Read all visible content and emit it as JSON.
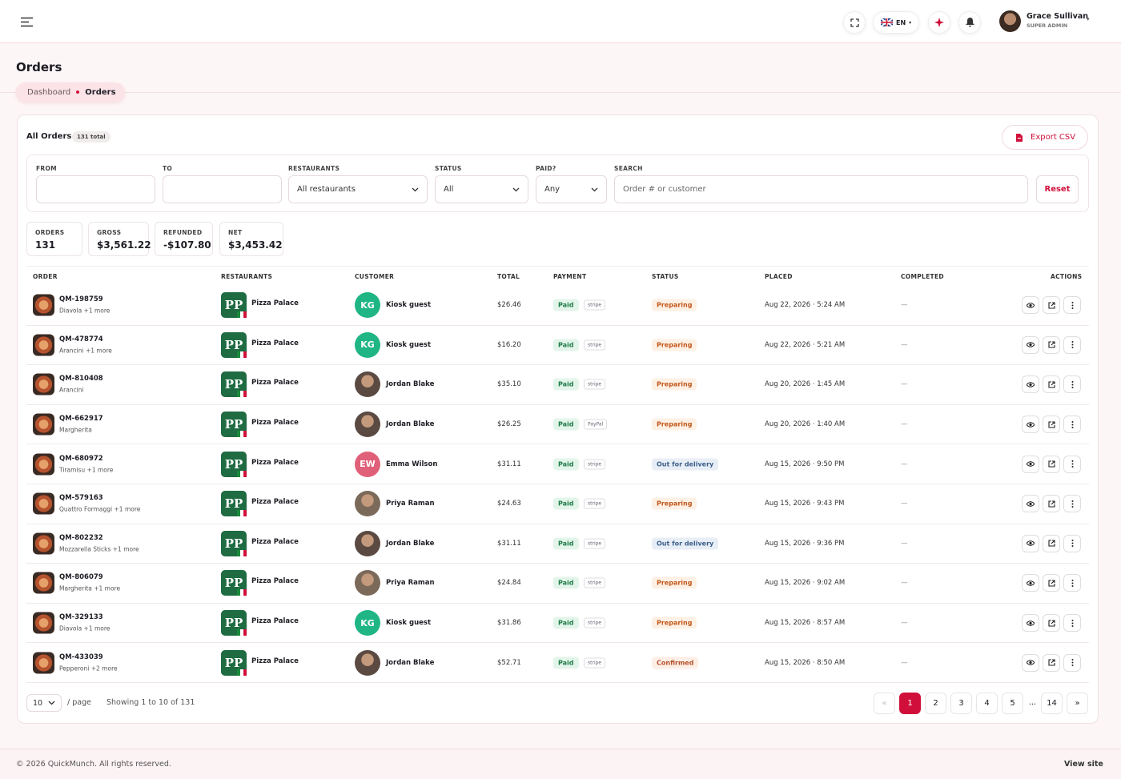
{
  "header": {
    "language": "EN",
    "user_name": "Grace Sullivan",
    "user_role": "SUPER ADMIN"
  },
  "page": {
    "title": "Orders",
    "breadcrumb": [
      "Dashboard",
      "Orders"
    ]
  },
  "card": {
    "title": "All Orders",
    "count_badge": "131 total",
    "export_button": "Export CSV"
  },
  "filters": {
    "labels": [
      "FROM",
      "TO",
      "RESTAURANTS",
      "STATUS",
      "PAID?",
      "SEARCH"
    ],
    "restaurants": "All restaurants",
    "status": "All",
    "paid": "Any",
    "search_placeholder": "Order # or customer",
    "reset": "Reset"
  },
  "stats": [
    {
      "label": "ORDERS",
      "value": "131"
    },
    {
      "label": "GROSS",
      "value": "$3,561.22"
    },
    {
      "label": "REFUNDED",
      "value": "-$107.80"
    },
    {
      "label": "NET",
      "value": "$3,453.42"
    }
  ],
  "table": {
    "columns": [
      "ORDER",
      "RESTAURANTS",
      "CUSTOMER",
      "TOTAL",
      "PAYMENT",
      "STATUS",
      "PLACED",
      "COMPLETED",
      "ACTIONS"
    ],
    "rows": [
      {
        "order": "QM-198759",
        "items": "Diavola +1 more",
        "restaurant_logo": "PP",
        "restaurant": "Pizza Palace",
        "initials": "KG",
        "avatar_color": "#1fb584",
        "customer": "Kiosk guest",
        "total": "$26.46",
        "payment": "Paid",
        "provider": "stripe",
        "status": "Preparing",
        "status_color": "#c2571a",
        "status_bg": "#fdf0e4",
        "placed": "Aug 22, 2026 · 5:24 AM",
        "completed": "—"
      },
      {
        "order": "QM-478774",
        "items": "Arancini +1 more",
        "restaurant_logo": "PP",
        "restaurant": "Pizza Palace",
        "initials": "KG",
        "avatar_color": "#1fb584",
        "customer": "Kiosk guest",
        "total": "$16.20",
        "payment": "Paid",
        "provider": "stripe",
        "status": "Preparing",
        "status_color": "#c2571a",
        "status_bg": "#fdf0e4",
        "placed": "Aug 22, 2026 · 5:21 AM",
        "completed": "—"
      },
      {
        "order": "QM-810408",
        "items": "Arancini",
        "restaurant_logo": "PP",
        "restaurant": "Pizza Palace",
        "avatar_color": "#5a4a42",
        "customer": "Jordan Blake",
        "total": "$35.10",
        "payment": "Paid",
        "provider": "stripe",
        "status": "Preparing",
        "status_color": "#c2571a",
        "status_bg": "#fdf0e4",
        "placed": "Aug 20, 2026 · 1:45 AM",
        "completed": "—"
      },
      {
        "order": "QM-662917",
        "items": "Margherita",
        "restaurant_logo": "PP",
        "restaurant": "Pizza Palace",
        "avatar_color": "#5a4a42",
        "customer": "Jordan Blake",
        "total": "$26.25",
        "payment": "Paid",
        "provider": "PayPal",
        "status": "Preparing",
        "status_color": "#c2571a",
        "status_bg": "#fdf0e4",
        "placed": "Aug 20, 2026 · 1:40 AM",
        "completed": "—"
      },
      {
        "order": "QM-680972",
        "items": "Tiramisu +1 more",
        "restaurant_logo": "PP",
        "restaurant": "Pizza Palace",
        "initials": "EW",
        "avatar_color": "#e0607a",
        "customer": "Emma Wilson",
        "total": "$31.11",
        "payment": "Paid",
        "provider": "stripe",
        "status": "Out for delivery",
        "status_color": "#3d5f8a",
        "status_bg": "#e8eef6",
        "placed": "Aug 15, 2026 · 9:50 PM",
        "completed": "—"
      },
      {
        "order": "QM-579163",
        "items": "Quattro Formaggi +1 more",
        "restaurant_logo": "PP",
        "restaurant": "Pizza Palace",
        "avatar_color": "#7b6a5a",
        "customer": "Priya Raman",
        "total": "$24.63",
        "payment": "Paid",
        "provider": "stripe",
        "status": "Preparing",
        "status_color": "#c2571a",
        "status_bg": "#fdf0e4",
        "placed": "Aug 15, 2026 · 9:43 PM",
        "completed": "—"
      },
      {
        "order": "QM-802232",
        "items": "Mozzarella Sticks +1 more",
        "restaurant_logo": "PP",
        "restaurant": "Pizza Palace",
        "avatar_color": "#5a4a42",
        "customer": "Jordan Blake",
        "total": "$31.11",
        "payment": "Paid",
        "provider": "stripe",
        "status": "Out for delivery",
        "status_color": "#3d5f8a",
        "status_bg": "#e8eef6",
        "placed": "Aug 15, 2026 · 9:36 PM",
        "completed": "—"
      },
      {
        "order": "QM-806079",
        "items": "Margherita +1 more",
        "restaurant_logo": "PP",
        "restaurant": "Pizza Palace",
        "avatar_color": "#7b6a5a",
        "customer": "Priya Raman",
        "total": "$24.84",
        "payment": "Paid",
        "provider": "stripe",
        "status": "Preparing",
        "status_color": "#c2571a",
        "status_bg": "#fdf0e4",
        "placed": "Aug 15, 2026 · 9:02 AM",
        "completed": "—"
      },
      {
        "order": "QM-329133",
        "items": "Diavola +1 more",
        "restaurant_logo": "PP",
        "restaurant": "Pizza Palace",
        "initials": "KG",
        "avatar_color": "#1fb584",
        "customer": "Kiosk guest",
        "total": "$31.86",
        "payment": "Paid",
        "provider": "stripe",
        "status": "Preparing",
        "status_color": "#c2571a",
        "status_bg": "#fdf0e4",
        "placed": "Aug 15, 2026 · 8:57 AM",
        "completed": "—"
      },
      {
        "order": "QM-433039",
        "items": "Pepperoni +2 more",
        "restaurant_logo": "PP",
        "restaurant": "Pizza Palace",
        "avatar_color": "#5a4a42",
        "customer": "Jordan Blake",
        "total": "$52.71",
        "payment": "Paid",
        "provider": "stripe",
        "status": "Confirmed",
        "status_color": "#b5502a",
        "status_bg": "#fdeee6",
        "placed": "Aug 15, 2026 · 8:50 AM",
        "completed": "—"
      }
    ]
  },
  "pagination": {
    "page_size": "10",
    "per_page": "/ page",
    "showing": "Showing 1 to 10 of 131",
    "prev": "«",
    "pages": [
      "1",
      "2",
      "3",
      "4",
      "5"
    ],
    "ellipsis": "...",
    "last": "14",
    "next": "»"
  },
  "footer": {
    "copyright": "© 2026 QuickMunch. All rights reserved.",
    "link": "View site"
  }
}
